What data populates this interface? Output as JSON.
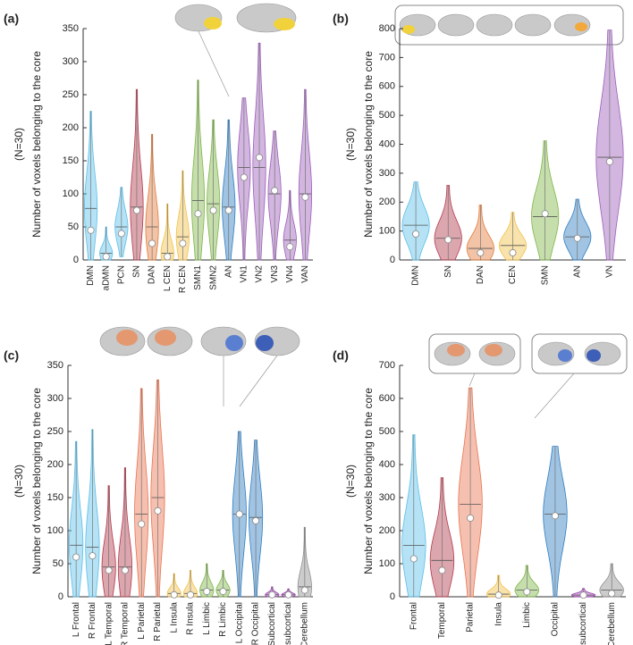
{
  "chart_data": [
    {
      "type": "violin",
      "panel": "(a)",
      "ylabel": "Number of voxels belonging to the core",
      "n_label": "(N=30)",
      "categories": [
        "DMN",
        "aDMN",
        "PCN",
        "SN",
        "DAN",
        "L CEN",
        "R CEN",
        "SMN1",
        "SMN2",
        "AN",
        "VN1",
        "VN2",
        "VN3",
        "VN4",
        "VAN"
      ],
      "colors": [
        "#5bbfe8",
        "#5bbfe8",
        "#5bbfe8",
        "#b23a4c",
        "#e37b3a",
        "#f2c04a",
        "#f2c04a",
        "#7fb548",
        "#7fb548",
        "#2f7dc0",
        "#9b5db8",
        "#9b5db8",
        "#9b5db8",
        "#9b5db8",
        "#9b5db8"
      ],
      "max": [
        225,
        50,
        110,
        258,
        190,
        85,
        135,
        272,
        212,
        212,
        245,
        328,
        195,
        105,
        258
      ],
      "median": [
        78,
        10,
        50,
        80,
        50,
        10,
        35,
        90,
        85,
        80,
        140,
        140,
        100,
        30,
        100
      ],
      "mean": [
        45,
        5,
        40,
        75,
        25,
        5,
        25,
        70,
        75,
        75,
        125,
        155,
        105,
        20,
        95
      ],
      "min": [
        0,
        0,
        5,
        0,
        0,
        0,
        0,
        0,
        0,
        0,
        0,
        0,
        0,
        0,
        0
      ],
      "ylim": [
        0,
        350
      ],
      "yticks": [
        0,
        50,
        100,
        150,
        200,
        250,
        300,
        350
      ]
    },
    {
      "type": "violin",
      "panel": "(b)",
      "ylabel": "Number of voxels belonging to the core",
      "n_label": "(N=30)",
      "categories": [
        "DMN",
        "SN",
        "DAN",
        "CEN",
        "SMN",
        "AN",
        "VN"
      ],
      "colors": [
        "#5bbfe8",
        "#b23a4c",
        "#e37b3a",
        "#f2c04a",
        "#7fb548",
        "#2f7dc0",
        "#9b5db8"
      ],
      "max": [
        270,
        258,
        190,
        165,
        412,
        210,
        795
      ],
      "median": [
        120,
        75,
        40,
        50,
        150,
        80,
        355
      ],
      "mean": [
        90,
        70,
        25,
        25,
        160,
        75,
        340
      ],
      "min": [
        0,
        0,
        0,
        0,
        0,
        0,
        0
      ],
      "ylim": [
        0,
        800
      ],
      "yticks": [
        0,
        100,
        200,
        300,
        400,
        500,
        600,
        700,
        800
      ]
    },
    {
      "type": "violin",
      "panel": "(c)",
      "ylabel": "Number of voxels belonging to the core",
      "n_label": "(N=30)",
      "categories": [
        "L Frontal",
        "R Frontal",
        "L Temporal",
        "R Temporal",
        "L Parietal",
        "R Parietal",
        "L Insula",
        "R Insula",
        "L Limbic",
        "R Limbic",
        "L Occipital",
        "R Occipital",
        "L Subcortical",
        "R subcortical",
        "Cerebellum"
      ],
      "colors": [
        "#5bbfe8",
        "#5bbfe8",
        "#b23a4c",
        "#b23a4c",
        "#e8734f",
        "#e8734f",
        "#f2c04a",
        "#f2c04a",
        "#7fb548",
        "#7fb548",
        "#2f7dc0",
        "#2f7dc0",
        "#9b3fb0",
        "#9b3fb0",
        "#8f8f8f"
      ],
      "max": [
        235,
        253,
        168,
        195,
        315,
        328,
        35,
        40,
        50,
        40,
        250,
        237,
        15,
        12,
        105
      ],
      "median": [
        78,
        75,
        45,
        45,
        125,
        150,
        5,
        5,
        10,
        10,
        125,
        120,
        3,
        3,
        15
      ],
      "mean": [
        60,
        62,
        40,
        40,
        110,
        130,
        3,
        3,
        8,
        8,
        125,
        115,
        3,
        3,
        10
      ],
      "min": [
        0,
        0,
        0,
        0,
        0,
        0,
        0,
        0,
        0,
        0,
        0,
        0,
        0,
        0,
        0
      ],
      "ylim": [
        0,
        350
      ],
      "yticks": [
        0,
        50,
        100,
        150,
        200,
        250,
        300,
        350
      ]
    },
    {
      "type": "violin",
      "panel": "(d)",
      "ylabel": "Number of voxels belonging to the core",
      "n_label": "(N=30)",
      "categories": [
        "Frontal",
        "Temporal",
        "Parietal",
        "Insula",
        "Limbic",
        "Occipital",
        "subcortical",
        "Cerebellum"
      ],
      "colors": [
        "#5bbfe8",
        "#b23a4c",
        "#e8734f",
        "#f2c04a",
        "#7fb548",
        "#2f7dc0",
        "#9b3fb0",
        "#8f8f8f"
      ],
      "max": [
        490,
        360,
        632,
        65,
        95,
        455,
        25,
        100
      ],
      "median": [
        155,
        110,
        280,
        8,
        20,
        250,
        5,
        20
      ],
      "mean": [
        115,
        80,
        238,
        5,
        15,
        245,
        5,
        10
      ],
      "min": [
        0,
        0,
        0,
        0,
        0,
        0,
        0,
        0
      ],
      "ylim": [
        0,
        700
      ],
      "yticks": [
        0,
        100,
        200,
        300,
        400,
        500,
        600,
        700
      ]
    }
  ]
}
